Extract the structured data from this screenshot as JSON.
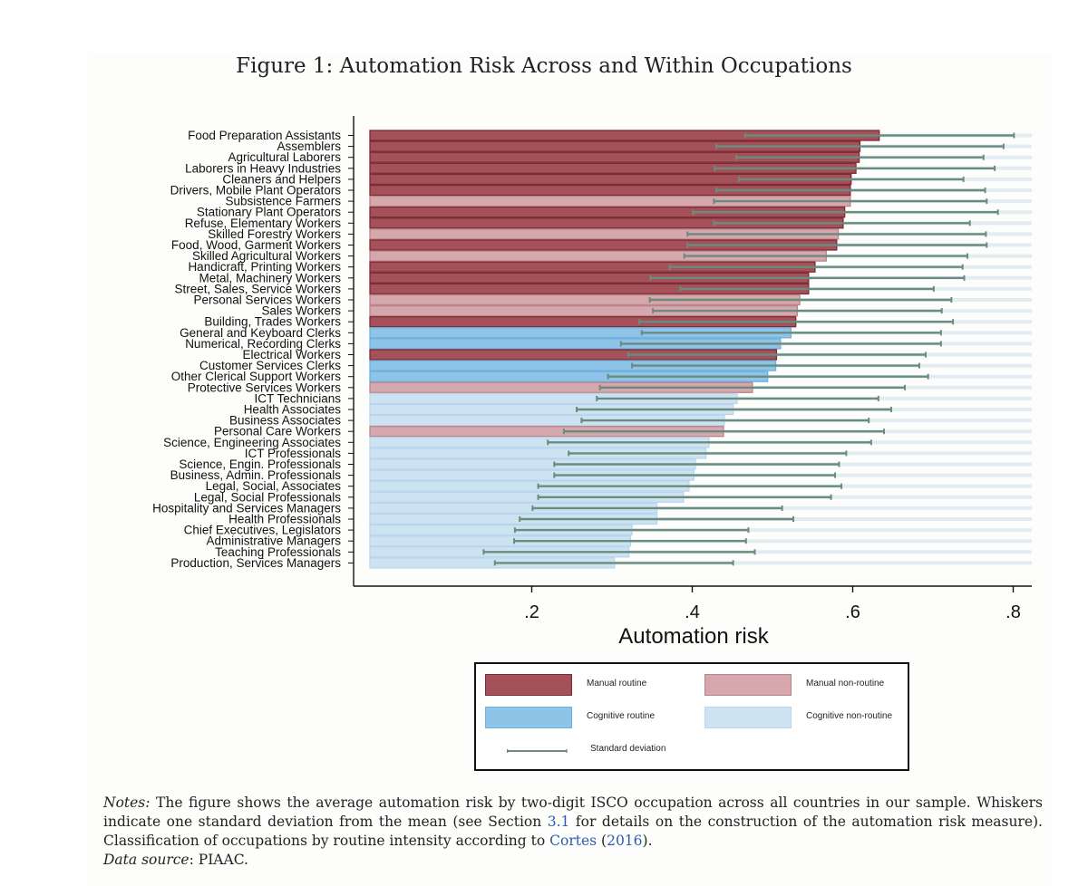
{
  "figure": {
    "title": "Figure 1: Automation Risk Across and Within Occupations"
  },
  "colors": {
    "manual_routine": "#a4515a",
    "manual_routine_edge": "#7d2a32",
    "manual_nonroutine": "#d6a7ac",
    "cognitive_routine": "#8ec4e8",
    "cognitive_nonroutine": "#cde3f2",
    "whisker": "#6a8c7e",
    "grid": "#e4ecf3"
  },
  "chart_data": {
    "type": "bar",
    "orientation": "horizontal",
    "xlabel": "Automation risk",
    "xlim": [
      0.0,
      0.82
    ],
    "xticks": [
      0.2,
      0.4,
      0.6,
      0.8
    ],
    "xtick_labels": [
      ".2",
      ".4",
      ".6",
      ".8"
    ],
    "grid": "horizontal lines",
    "legend_position": "bottom",
    "categories": [
      "Food Preparation Assistants",
      "Assemblers",
      "Agricultural Laborers",
      "Laborers in Heavy Industries",
      "Cleaners and Helpers",
      "Drivers, Mobile Plant Operators",
      "Subsistence Farmers",
      "Stationary Plant Operators",
      "Refuse, Elementary Workers",
      "Skilled Forestry Workers",
      "Food, Wood, Garment Workers",
      "Skilled Agricultural Workers",
      "Handicraft, Printing Workers",
      "Metal, Machinery Workers",
      "Street, Sales, Service Workers",
      "Personal Services Workers",
      "Sales Workers",
      "Building, Trades Workers",
      "General and Keyboard Clerks",
      "Numerical, Recording Clerks",
      "Electrical Workers",
      "Customer Services Clerks",
      "Other Clerical Support Workers",
      "Protective Services Workers",
      "ICT Technicians",
      "Health Associates",
      "Business Associates",
      "Personal Care Workers",
      "Science, Engineering Associates",
      "ICT Professionals",
      "Science, Engin. Professionals",
      "Business, Admin. Professionals",
      "Legal, Social, Associates",
      "Legal, Social Professionals",
      "Hospitality and Services Managers",
      "Health Professionals",
      "Chief Executives, Legislators",
      "Administrative Managers",
      "Teaching Professionals",
      "Production, Services Managers"
    ],
    "series": [
      {
        "name": "Manual routine",
        "key": "manual_routine",
        "values": [
          0.633,
          0.609,
          0.608,
          0.604,
          0.598,
          0.597,
          null,
          0.59,
          0.588,
          null,
          0.58,
          null,
          0.553,
          0.545,
          0.545,
          null,
          null,
          0.529,
          null,
          null,
          0.505,
          null,
          null,
          null,
          null,
          null,
          null,
          null,
          null,
          null,
          null,
          null,
          null,
          null,
          null,
          null,
          null,
          null,
          null,
          null
        ]
      },
      {
        "name": "Manual non-routine",
        "key": "manual_nonroutine",
        "values": [
          null,
          null,
          null,
          null,
          null,
          null,
          0.597,
          null,
          null,
          0.582,
          null,
          0.567,
          null,
          null,
          null,
          0.534,
          0.531,
          null,
          null,
          null,
          null,
          null,
          null,
          0.475,
          null,
          null,
          null,
          0.439,
          null,
          null,
          null,
          null,
          null,
          null,
          null,
          null,
          null,
          null,
          null,
          null
        ]
      },
      {
        "name": "Cognitive routine",
        "key": "cognitive_routine",
        "values": [
          null,
          null,
          null,
          null,
          null,
          null,
          null,
          null,
          null,
          null,
          null,
          null,
          null,
          null,
          null,
          null,
          null,
          null,
          0.523,
          0.51,
          null,
          0.504,
          0.494,
          null,
          null,
          null,
          null,
          null,
          null,
          null,
          null,
          null,
          null,
          null,
          null,
          null,
          null,
          null,
          null,
          null
        ]
      },
      {
        "name": "Cognitive non-routine",
        "key": "cognitive_nonroutine",
        "values": [
          null,
          null,
          null,
          null,
          null,
          null,
          null,
          null,
          null,
          null,
          null,
          null,
          null,
          null,
          null,
          null,
          null,
          null,
          null,
          null,
          null,
          null,
          null,
          null,
          0.456,
          0.451,
          0.44,
          null,
          0.421,
          0.417,
          0.404,
          0.402,
          0.396,
          0.389,
          0.356,
          0.356,
          0.325,
          0.323,
          0.321,
          0.303
        ]
      }
    ],
    "sd_low": [
      0.466,
      0.43,
      0.455,
      0.428,
      0.458,
      0.43,
      0.427,
      0.401,
      0.427,
      0.394,
      0.394,
      0.39,
      0.372,
      0.348,
      0.385,
      0.347,
      0.351,
      0.334,
      0.337,
      0.311,
      0.32,
      0.325,
      0.295,
      0.285,
      0.281,
      0.256,
      0.262,
      0.24,
      0.22,
      0.246,
      0.228,
      0.228,
      0.208,
      0.208,
      0.201,
      0.185,
      0.179,
      0.178,
      0.14,
      0.154
    ],
    "sd_high": [
      0.801,
      0.788,
      0.763,
      0.777,
      0.738,
      0.765,
      0.767,
      0.781,
      0.746,
      0.766,
      0.767,
      0.743,
      0.737,
      0.739,
      0.701,
      0.723,
      0.711,
      0.725,
      0.71,
      0.71,
      0.691,
      0.683,
      0.694,
      0.665,
      0.632,
      0.648,
      0.62,
      0.639,
      0.623,
      0.592,
      0.583,
      0.578,
      0.586,
      0.573,
      0.512,
      0.526,
      0.47,
      0.467,
      0.478,
      0.451
    ],
    "sd_label": "Standard deviation"
  },
  "notes": {
    "label": "Notes:",
    "text1": " The figure shows the average automation risk by two-digit ISCO occupation across all countries in our sample. Whiskers indicate one standard deviation from the mean (see Section ",
    "section_ref": "3.1",
    "text2": " for details on the construction of the automation risk measure). Classification of occupations by routine intensity according to ",
    "cite_author": "Cortes",
    "cite_open": " (",
    "cite_year": "2016",
    "cite_close": ").",
    "source_label": "Data source",
    "source_text": ": PIAAC."
  }
}
